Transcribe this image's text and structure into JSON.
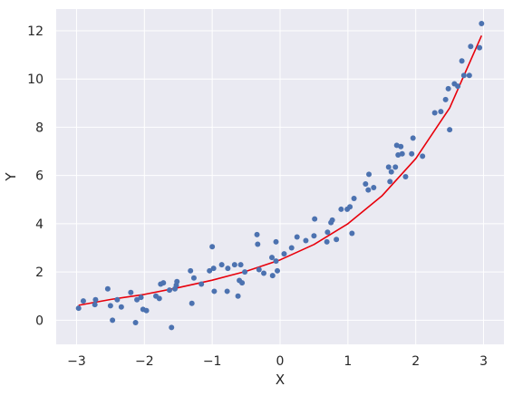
{
  "chart_data": {
    "type": "scatter",
    "title": "",
    "xlabel": "X",
    "ylabel": "Y",
    "xlim": [
      -3.3,
      3.3
    ],
    "ylim": [
      -1.0,
      12.9
    ],
    "xticks": [
      -3,
      -2,
      -1,
      0,
      1,
      2,
      3
    ],
    "yticks": [
      0,
      2,
      4,
      6,
      8,
      10,
      12
    ],
    "grid": true,
    "legend": "none",
    "colors": {
      "background": "#eaeaf2",
      "grid": "#ffffff",
      "points": "#4c72b0",
      "fit_line": "#e8000b"
    },
    "series": [
      {
        "kind": "scatter",
        "x": [
          -2.97,
          -2.9,
          -2.73,
          -2.72,
          -2.54,
          -2.5,
          -2.47,
          -2.4,
          -2.34,
          -2.2,
          -2.13,
          -2.11,
          -2.05,
          -2.02,
          -1.97,
          -1.83,
          -1.78,
          -1.76,
          -1.72,
          -1.63,
          -1.6,
          -1.55,
          -1.53,
          -1.52,
          -1.32,
          -1.3,
          -1.27,
          -1.16,
          -1.04,
          -1.0,
          -0.98,
          -0.97,
          -0.86,
          -0.78,
          -0.77,
          -0.67,
          -0.62,
          -0.6,
          -0.58,
          -0.56,
          -0.52,
          -0.34,
          -0.33,
          -0.31,
          -0.24,
          -0.12,
          -0.11,
          -0.06,
          -0.06,
          -0.04,
          0.06,
          0.17,
          0.25,
          0.38,
          0.5,
          0.51,
          0.69,
          0.7,
          0.75,
          0.77,
          0.83,
          0.9,
          0.99,
          1.03,
          1.06,
          1.09,
          1.26,
          1.3,
          1.31,
          1.38,
          1.6,
          1.62,
          1.64,
          1.7,
          1.72,
          1.74,
          1.78,
          1.8,
          1.85,
          1.94,
          1.96,
          2.1,
          2.28,
          2.37,
          2.44,
          2.48,
          2.5,
          2.57,
          2.62,
          2.68,
          2.71,
          2.79,
          2.81,
          2.94,
          2.97
        ],
        "y": [
          0.5,
          0.8,
          0.65,
          0.85,
          1.3,
          0.6,
          0.0,
          0.85,
          0.55,
          1.15,
          -0.1,
          0.85,
          0.95,
          0.45,
          0.4,
          1.0,
          0.9,
          1.5,
          1.55,
          1.25,
          -0.3,
          1.3,
          1.45,
          1.6,
          2.05,
          0.7,
          1.75,
          1.5,
          2.05,
          3.05,
          2.15,
          1.2,
          2.3,
          1.2,
          2.15,
          2.3,
          1.0,
          1.65,
          2.3,
          1.55,
          2.0,
          3.55,
          3.15,
          2.1,
          1.95,
          2.6,
          1.85,
          2.45,
          3.25,
          2.05,
          2.75,
          3.0,
          3.45,
          3.3,
          3.5,
          4.2,
          3.25,
          3.65,
          4.05,
          4.15,
          3.35,
          4.6,
          4.6,
          4.7,
          3.6,
          5.05,
          5.65,
          5.4,
          6.05,
          5.5,
          6.35,
          5.75,
          6.15,
          6.35,
          7.25,
          6.85,
          7.2,
          6.9,
          5.95,
          6.9,
          7.55,
          6.8,
          8.6,
          8.65,
          9.15,
          9.6,
          7.9,
          9.8,
          9.7,
          10.75,
          10.15,
          10.15,
          11.35,
          11.3,
          12.3
        ]
      },
      {
        "kind": "line",
        "x": [
          -2.97,
          -2.5,
          -2.0,
          -1.5,
          -1.0,
          -0.5,
          0.0,
          0.5,
          1.0,
          1.5,
          2.0,
          2.5,
          2.97
        ],
        "y": [
          0.62,
          0.86,
          1.07,
          1.35,
          1.66,
          2.03,
          2.5,
          3.14,
          4.0,
          5.15,
          6.7,
          8.8,
          11.8
        ]
      }
    ]
  }
}
